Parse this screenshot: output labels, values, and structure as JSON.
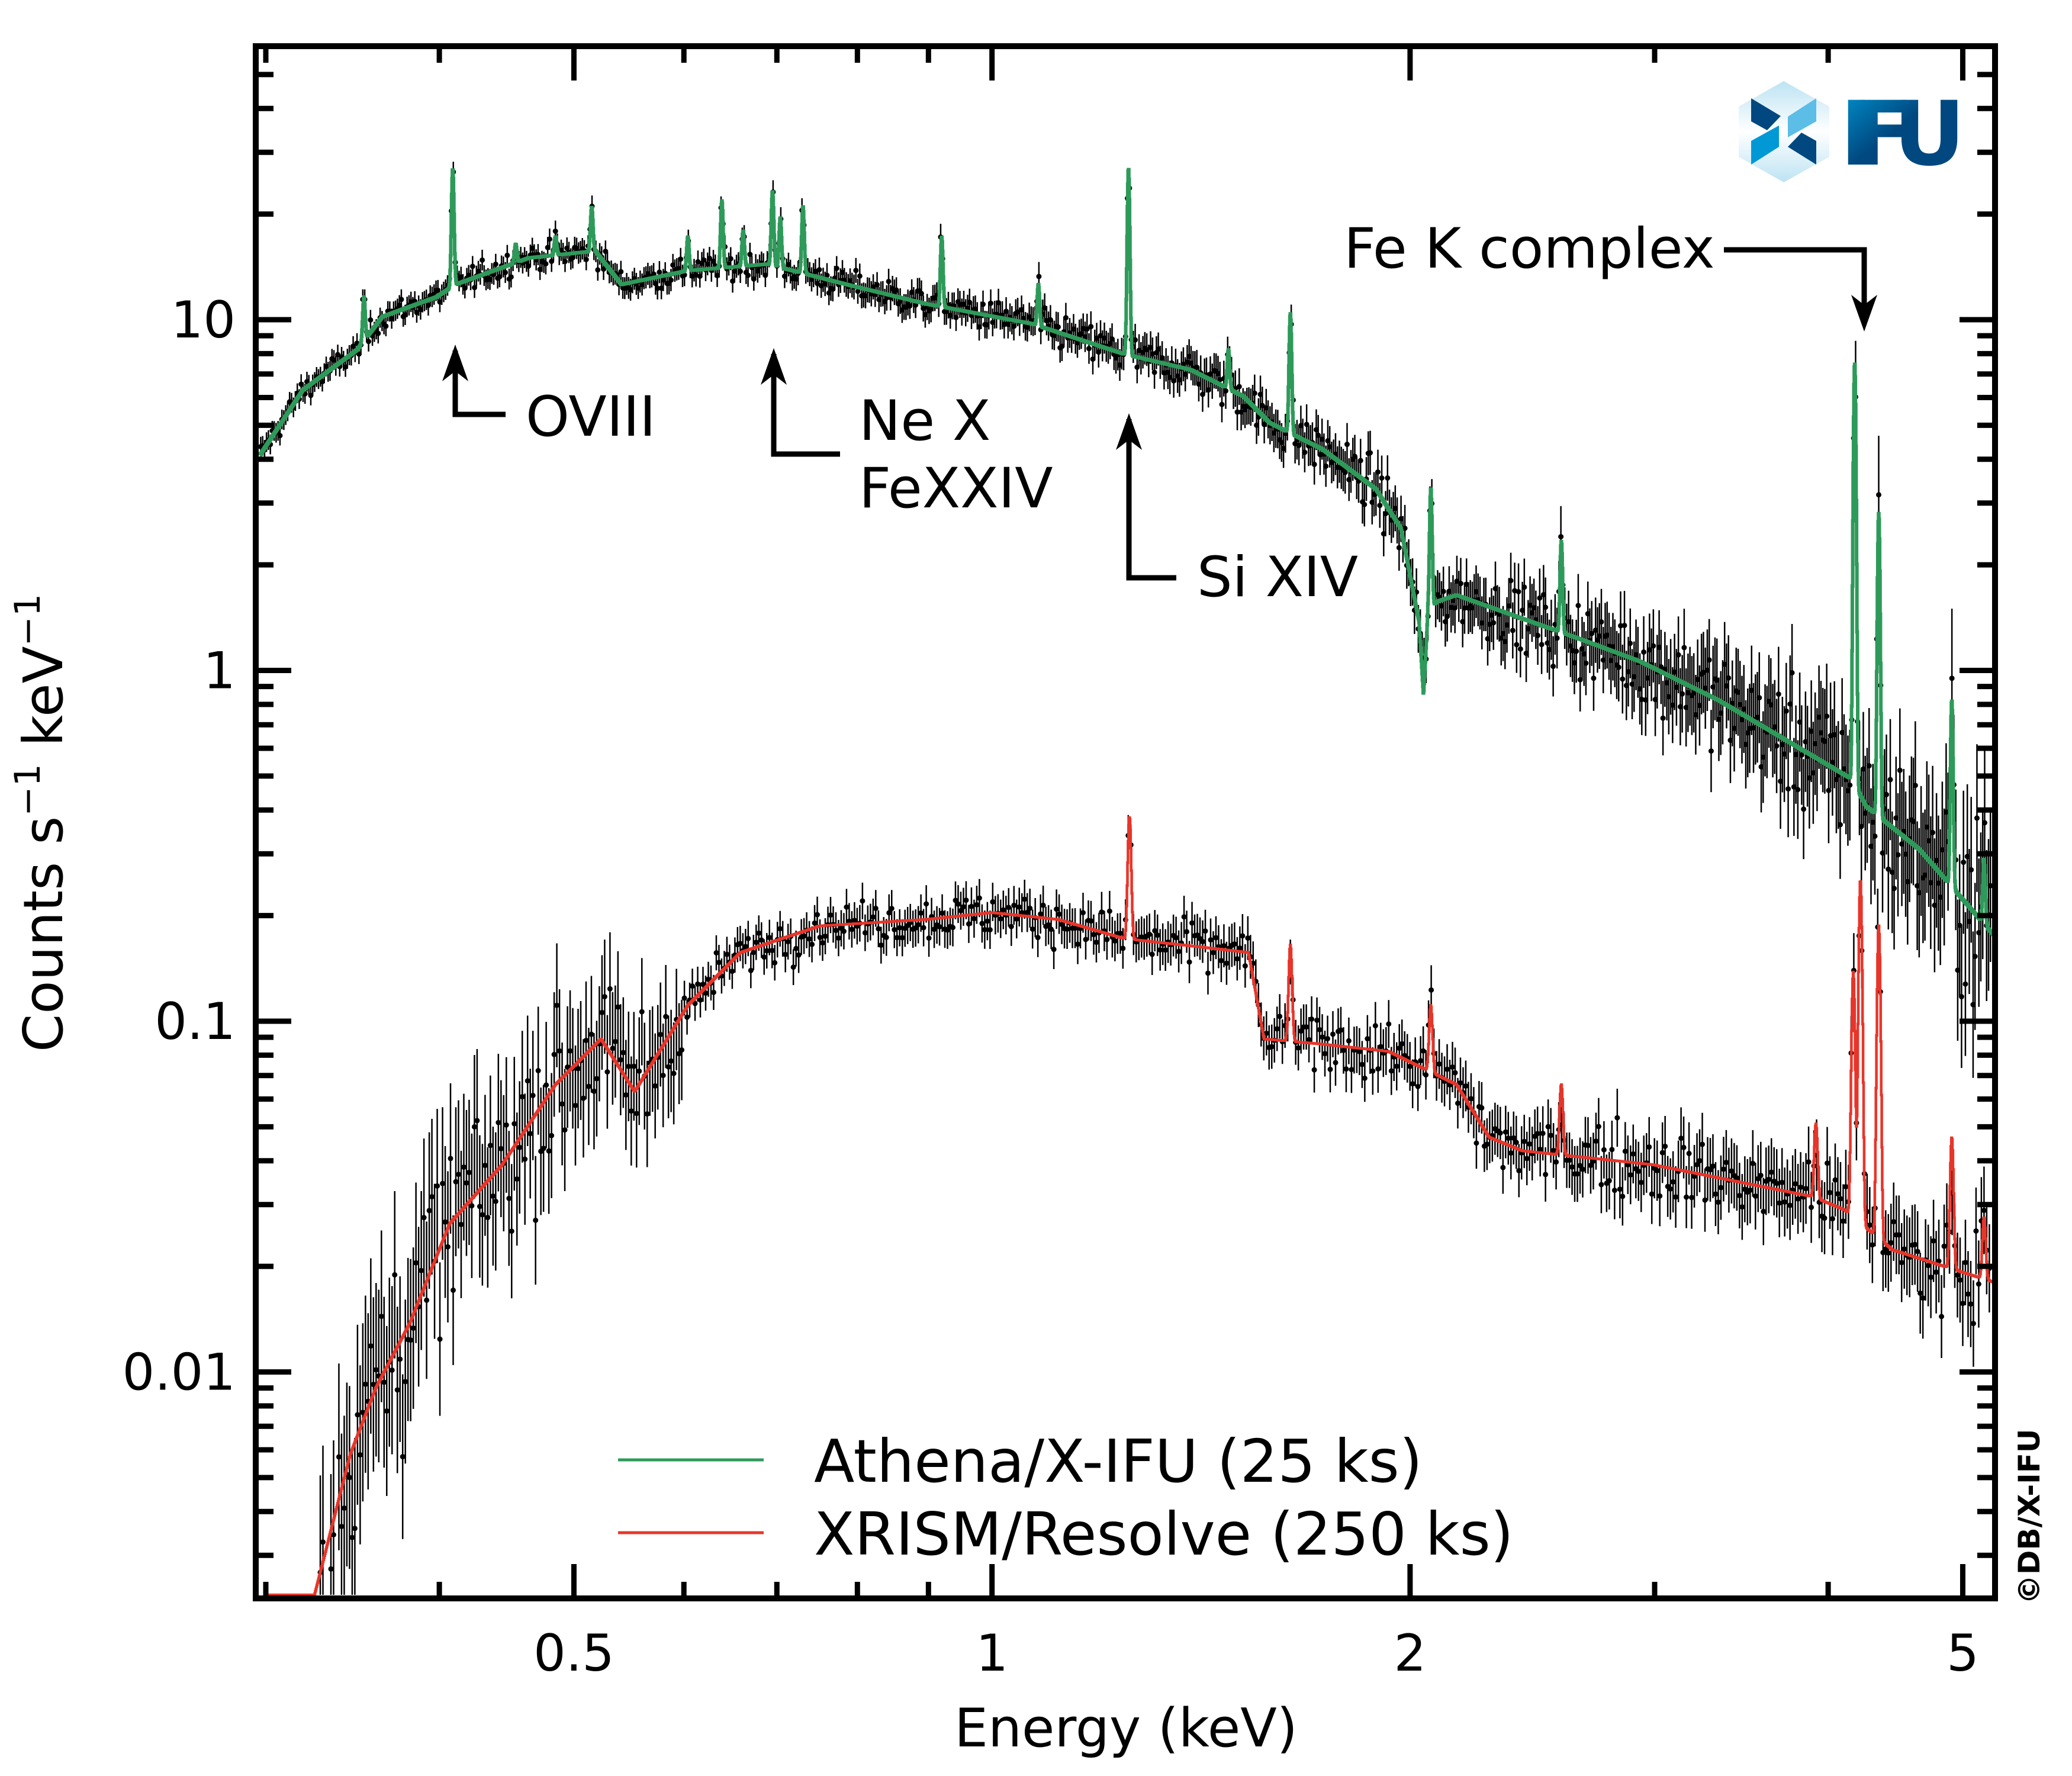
{
  "chart_data": {
    "type": "line",
    "xlabel": "Energy (keV)",
    "ylabel_parts": [
      "Counts s",
      "−1",
      " keV",
      "−1"
    ],
    "x_scale": "log",
    "y_scale": "log",
    "xlim": [
      0.295,
      5.27
    ],
    "ylim": [
      0.00226,
      60
    ],
    "x_ticks": [
      {
        "value": 0.5,
        "label": "0.5"
      },
      {
        "value": 1,
        "label": "1"
      },
      {
        "value": 2,
        "label": "2"
      },
      {
        "value": 5,
        "label": "5"
      }
    ],
    "x_minor_ticks": [
      0.3,
      0.4,
      0.6,
      0.7,
      0.8,
      0.9,
      3,
      4
    ],
    "y_ticks": [
      {
        "value": 10,
        "label": "10"
      },
      {
        "value": 1,
        "label": "1"
      },
      {
        "value": 0.1,
        "label": "0.1"
      },
      {
        "value": 0.01,
        "label": "0.01"
      }
    ],
    "grid": false,
    "legend_placement": "bottom-center",
    "series": [
      {
        "name": "Athena/X-IFU (25 ks)",
        "color": "#2e9a5a",
        "continuum": [
          [
            0.299,
            4.27
          ],
          [
            0.319,
            6.3
          ],
          [
            0.349,
            8.2
          ],
          [
            0.364,
            10.2
          ],
          [
            0.398,
            11.6
          ],
          [
            0.411,
            12.6
          ],
          [
            0.464,
            15.0
          ],
          [
            0.518,
            15.7
          ],
          [
            0.541,
            12.6
          ],
          [
            0.604,
            13.8
          ],
          [
            0.689,
            14.4
          ],
          [
            0.786,
            12.6
          ],
          [
            0.896,
            11.1
          ],
          [
            1.068,
            9.74
          ],
          [
            1.245,
            7.98
          ],
          [
            1.39,
            7.2
          ],
          [
            1.517,
            6.05
          ],
          [
            1.585,
            5.08
          ],
          [
            1.73,
            4.27
          ],
          [
            1.89,
            3.29
          ],
          [
            1.97,
            2.54
          ],
          [
            2.03,
            1.38
          ],
          [
            2.045,
            0.85
          ],
          [
            2.06,
            1.45
          ],
          [
            2.09,
            1.57
          ],
          [
            2.16,
            1.64
          ],
          [
            2.68,
            1.21
          ],
          [
            2.93,
            1.06
          ],
          [
            3.34,
            0.82
          ],
          [
            4.16,
            0.49
          ],
          [
            4.26,
            0.41
          ],
          [
            4.65,
            0.31
          ],
          [
            5.27,
            0.175
          ]
        ],
        "lines": [
          [
            0.353,
            11.6
          ],
          [
            0.409,
            26.9
          ],
          [
            0.454,
            16.4
          ],
          [
            0.485,
            17.2
          ],
          [
            0.515,
            20.9
          ],
          [
            0.604,
            17.2
          ],
          [
            0.639,
            21.8
          ],
          [
            0.662,
            17.9
          ],
          [
            0.695,
            23.2
          ],
          [
            0.704,
            19.5
          ],
          [
            0.731,
            21.0
          ],
          [
            0.92,
            17.2
          ],
          [
            1.08,
            12.6
          ],
          [
            1.254,
            26.9
          ],
          [
            1.48,
            8.2
          ],
          [
            1.64,
            10.4
          ],
          [
            2.07,
            3.3
          ],
          [
            2.57,
            2.33
          ],
          [
            4.18,
            7.5
          ],
          [
            4.35,
            2.8
          ],
          [
            4.91,
            0.82
          ],
          [
            5.18,
            0.29
          ]
        ]
      },
      {
        "name": "XRISM/Resolve (250 ks)",
        "color": "#e8352a",
        "continuum": [
          [
            0.33,
            0.0029
          ],
          [
            0.345,
            0.0058
          ],
          [
            0.36,
            0.009
          ],
          [
            0.381,
            0.0138
          ],
          [
            0.407,
            0.0265
          ],
          [
            0.444,
            0.039
          ],
          [
            0.485,
            0.066
          ],
          [
            0.523,
            0.089
          ],
          [
            0.553,
            0.063
          ],
          [
            0.604,
            0.111
          ],
          [
            0.659,
            0.157
          ],
          [
            0.752,
            0.187
          ],
          [
            0.896,
            0.195
          ],
          [
            1.0,
            0.204
          ],
          [
            1.116,
            0.195
          ],
          [
            1.245,
            0.172
          ],
          [
            1.39,
            0.164
          ],
          [
            1.53,
            0.157
          ],
          [
            1.57,
            0.089
          ],
          [
            1.73,
            0.086
          ],
          [
            1.93,
            0.082
          ],
          [
            2.16,
            0.066
          ],
          [
            2.28,
            0.0467
          ],
          [
            2.41,
            0.0427
          ],
          [
            2.99,
            0.039
          ],
          [
            3.9,
            0.0316
          ],
          [
            4.11,
            0.029
          ],
          [
            4.45,
            0.0223
          ],
          [
            5.27,
            0.018
          ]
        ],
        "lines": [
          [
            1.256,
            0.382
          ],
          [
            1.64,
            0.165
          ],
          [
            2.07,
            0.111
          ],
          [
            2.57,
            0.066
          ],
          [
            3.92,
            0.051
          ],
          [
            4.17,
            0.138
          ],
          [
            4.22,
            0.253
          ],
          [
            4.35,
            0.187
          ],
          [
            4.91,
            0.0467
          ],
          [
            5.18,
            0.0275
          ]
        ]
      }
    ],
    "annotations": [
      {
        "label_lines": [
          "OVIII"
        ],
        "energy": 0.41
      },
      {
        "label_lines": [
          "Ne X",
          "FeXXIV"
        ],
        "energy": 0.695
      },
      {
        "label_lines": [
          "Si XIV"
        ],
        "energy": 1.254
      },
      {
        "label_lines": [
          "Fe K complex"
        ],
        "energy": 4.3
      }
    ]
  },
  "logo": {
    "text": "IFU",
    "colors": {
      "dark": "#00487f",
      "light": "#0099d6",
      "hex": "#bde3f3"
    }
  },
  "copyright": "©DB/X-IFU"
}
